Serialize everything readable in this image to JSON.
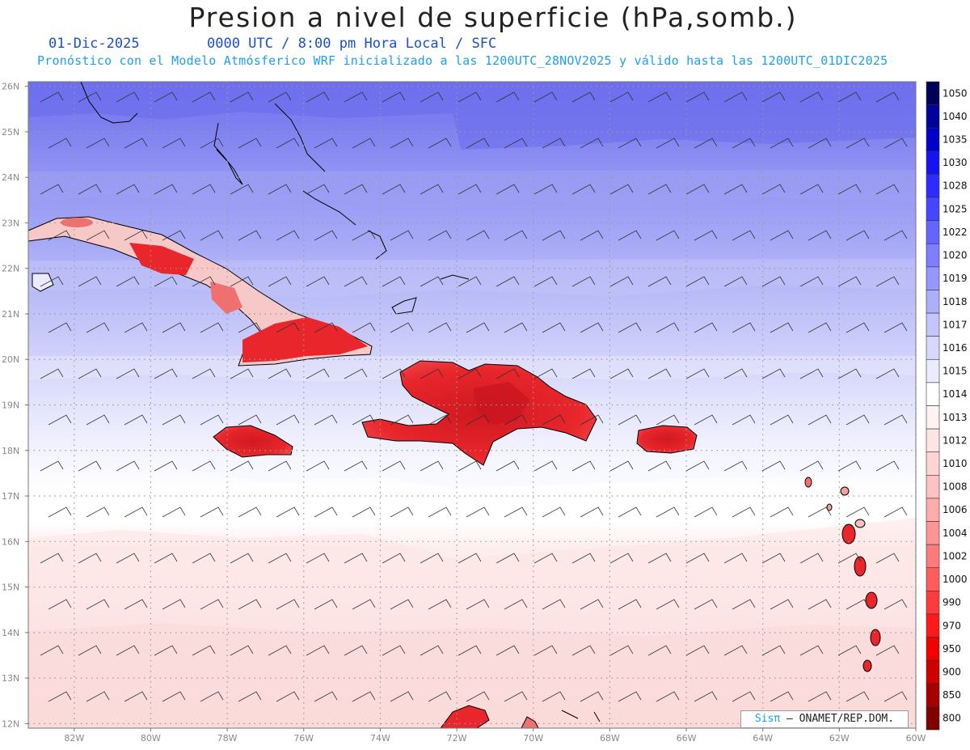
{
  "header": {
    "title": "Presion a nivel de superficie (hPa,somb.)",
    "date": "01-Dic-2025",
    "time_info": "0000 UTC / 8:00 pm Hora Local / SFC",
    "model_info": "Pronóstico con el Modelo Atmósferico WRF inicializado a las 1200UTC_28NOV2025 y válido hasta las  1200UTC_01DIC2025"
  },
  "map": {
    "lat_labels": [
      "26N",
      "25N",
      "24N",
      "23N",
      "22N",
      "21N",
      "20N",
      "19N",
      "18N",
      "17N",
      "16N",
      "15N",
      "14N",
      "13N",
      "12N"
    ],
    "lon_labels": [
      "82W",
      "80W",
      "78W",
      "76W",
      "74W",
      "72W",
      "70W",
      "68W",
      "66W",
      "64W",
      "62W",
      "60W"
    ],
    "lat_range": [
      11.9,
      26.1
    ],
    "lon_range": [
      -83.2,
      -60.0
    ],
    "colors": {
      "land_red": "#e8262c",
      "land_dark": "#c81420",
      "band_top": "#7274f0",
      "band_white": "#ffffff",
      "band_pink": "#fde6e6"
    }
  },
  "colorbar": {
    "labels": [
      "1050",
      "1040",
      "1035",
      "1030",
      "1028",
      "1025",
      "1022",
      "1020",
      "1019",
      "1018",
      "1017",
      "1016",
      "1015",
      "1014",
      "1013",
      "1012",
      "1010",
      "1008",
      "1006",
      "1004",
      "1002",
      "1000",
      "990",
      "970",
      "950",
      "900",
      "850",
      "800"
    ],
    "colors": [
      "#00005a",
      "#00009a",
      "#0000c8",
      "#1414f0",
      "#2c2cff",
      "#4646ff",
      "#6464ff",
      "#7e7eff",
      "#9696ff",
      "#aeaeff",
      "#c4c4ff",
      "#d8d8ff",
      "#ebebff",
      "#ffffff",
      "#fff2f2",
      "#ffe4e4",
      "#ffd4d4",
      "#ffc2c2",
      "#ffacac",
      "#ff9494",
      "#ff7a7a",
      "#ff5c5c",
      "#ff3a3a",
      "#ff1a1a",
      "#f00000",
      "#d00000",
      "#a80000",
      "#800000"
    ]
  },
  "credit": {
    "brand": "Sisπ",
    "org": "– ONAMET/REP.DOM."
  }
}
